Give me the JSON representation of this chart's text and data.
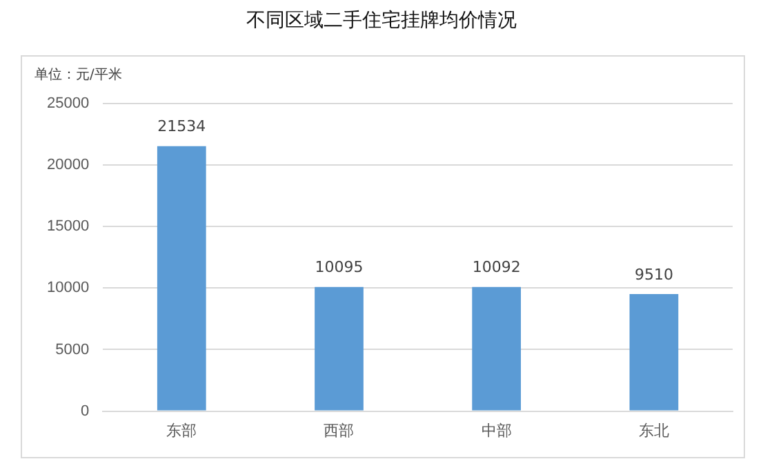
{
  "chart_data": {
    "type": "bar",
    "title": "不同区域二手住宅挂牌均价情况",
    "annotations": [
      "单位：元/平米"
    ],
    "categories": [
      "东部",
      "西部",
      "中部",
      "东北"
    ],
    "values": [
      21534,
      10095,
      10092,
      9510
    ],
    "color": "#5b9bd5",
    "ylim": [
      0,
      25000
    ],
    "yticks": [
      0,
      5000,
      10000,
      15000,
      20000,
      25000
    ],
    "grid": "y",
    "data_labels": true,
    "legend": false
  }
}
